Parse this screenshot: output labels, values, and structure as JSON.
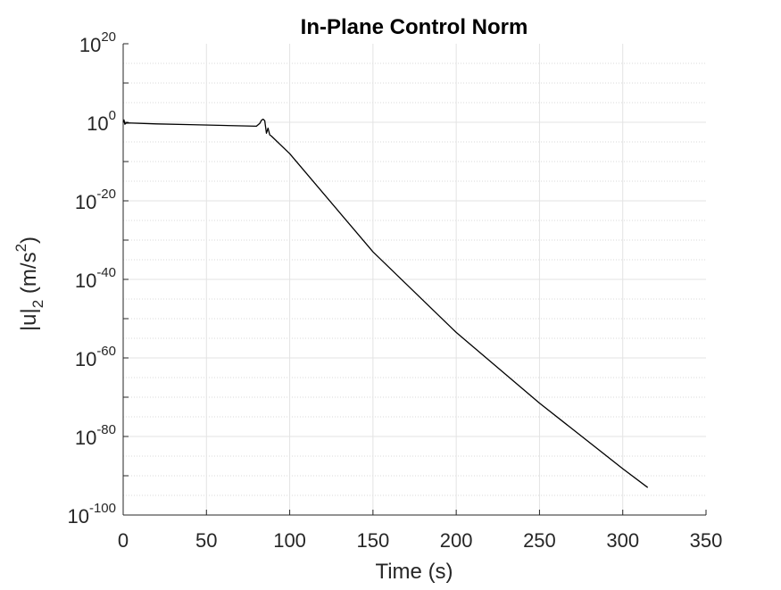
{
  "chart_data": {
    "type": "line",
    "title": "In-Plane Control Norm",
    "xlabel": "Time (s)",
    "ylabel": {
      "base": "|u|",
      "sub": "2",
      "units_open": " (m/s",
      "units_sup": "2",
      "units_close": ")"
    },
    "x_scale": "linear",
    "y_scale": "log",
    "xlim": [
      0,
      350
    ],
    "ylim_exponent": [
      -100,
      20
    ],
    "x_ticks": [
      "0",
      "50",
      "100",
      "150",
      "200",
      "250",
      "300",
      "350"
    ],
    "y_ticks": [
      {
        "base": "10",
        "exp": "20"
      },
      {
        "base": "10",
        "exp": "0"
      },
      {
        "base": "10",
        "exp": "-20"
      },
      {
        "base": "10",
        "exp": "-40"
      },
      {
        "base": "10",
        "exp": "-60"
      },
      {
        "base": "10",
        "exp": "-80"
      },
      {
        "base": "10",
        "exp": "-100"
      }
    ],
    "grid": true,
    "minor_grid": true,
    "line_color": "#000000",
    "series": [
      {
        "x": [
          0,
          0.5,
          1,
          1.5,
          2,
          5,
          20,
          40,
          60,
          80,
          82,
          83,
          84,
          85,
          86,
          87,
          88,
          89,
          100,
          150,
          200,
          250,
          300,
          315
        ],
        "y_log10": [
          0,
          0.6,
          -0.5,
          -0.3,
          -0.15,
          -0.2,
          -0.4,
          -0.6,
          -0.8,
          -1.0,
          -0.3,
          0.5,
          0.8,
          0.4,
          -2.8,
          -1.5,
          -3.2,
          -3.5,
          -8,
          -33,
          -53.5,
          -71.5,
          -88.2,
          -93
        ]
      }
    ]
  }
}
